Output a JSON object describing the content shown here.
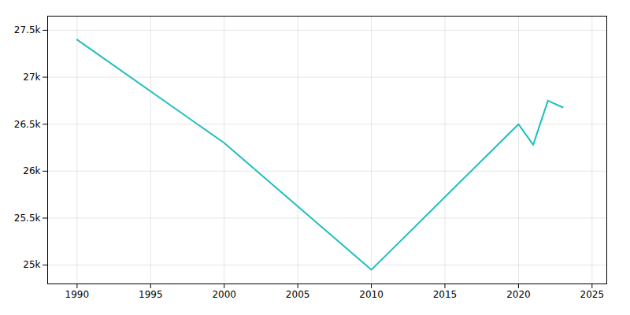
{
  "chart_data": {
    "type": "line",
    "x": [
      1990,
      2000,
      2010,
      2020,
      2021,
      2022,
      2023
    ],
    "values": [
      27400,
      26300,
      24950,
      26500,
      26280,
      26750,
      26680
    ],
    "color": "#20BEBE",
    "xlim": [
      1988,
      2026
    ],
    "xticks": [
      1990,
      1995,
      2000,
      2005,
      2010,
      2015,
      2020,
      2025
    ],
    "ylim": [
      24800,
      27650
    ],
    "yticks": [
      {
        "value": 25000,
        "label": "25k"
      },
      {
        "value": 25500,
        "label": "25.5k"
      },
      {
        "value": 26000,
        "label": "26k"
      },
      {
        "value": 26500,
        "label": "26.5k"
      },
      {
        "value": 27000,
        "label": "27k"
      },
      {
        "value": 27500,
        "label": "27.5k"
      }
    ],
    "grid": true
  }
}
